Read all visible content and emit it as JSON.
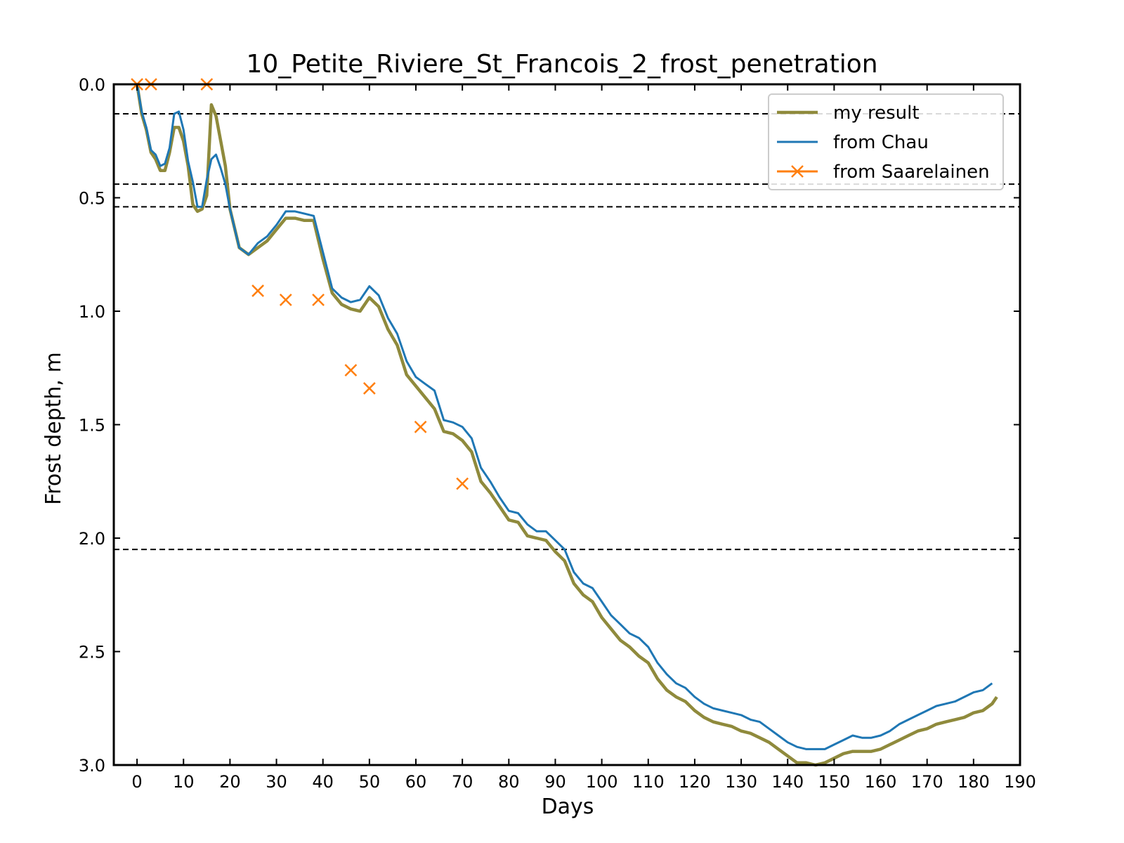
{
  "chart_data": {
    "type": "line",
    "title": "10_Petite_Riviere_St_Francois_2_frost_penetration",
    "xlabel": "Days",
    "ylabel": "Frost depth, m",
    "xlim": [
      -5,
      190
    ],
    "ylim": [
      0,
      3.0
    ],
    "y_inverted": true,
    "grid": false,
    "legend_position": "top-right",
    "x_ticks": [
      0,
      10,
      20,
      30,
      40,
      50,
      60,
      70,
      80,
      90,
      100,
      110,
      120,
      130,
      140,
      150,
      160,
      170,
      180,
      190
    ],
    "y_ticks": [
      0.0,
      0.5,
      1.0,
      1.5,
      2.0,
      2.5,
      3.0
    ],
    "y_tick_labels": [
      "0.0",
      "0.5",
      "1.0",
      "1.5",
      "2.0",
      "2.5",
      "3.0"
    ],
    "reference_lines": [
      0.13,
      0.44,
      0.54,
      2.05
    ],
    "series": [
      {
        "name": "my result",
        "color": "#8f8a3c",
        "style": "line",
        "x": [
          0,
          1,
          2,
          3,
          4,
          5,
          6,
          7,
          8,
          9,
          10,
          11,
          12,
          13,
          14,
          15,
          16,
          17,
          18,
          19,
          20,
          22,
          24,
          26,
          28,
          30,
          32,
          34,
          36,
          38,
          40,
          42,
          44,
          46,
          48,
          50,
          52,
          54,
          56,
          58,
          60,
          62,
          64,
          66,
          68,
          70,
          72,
          74,
          76,
          78,
          80,
          82,
          84,
          86,
          88,
          90,
          92,
          94,
          96,
          98,
          100,
          102,
          104,
          106,
          108,
          110,
          112,
          114,
          116,
          118,
          120,
          122,
          124,
          126,
          128,
          130,
          132,
          134,
          136,
          138,
          140,
          142,
          144,
          146,
          148,
          150,
          152,
          154,
          156,
          158,
          160,
          162,
          164,
          166,
          168,
          170,
          172,
          174,
          176,
          178,
          180,
          182,
          184,
          185
        ],
        "y": [
          0.0,
          0.13,
          0.2,
          0.3,
          0.33,
          0.38,
          0.38,
          0.3,
          0.19,
          0.19,
          0.25,
          0.36,
          0.53,
          0.56,
          0.55,
          0.49,
          0.09,
          0.14,
          0.25,
          0.36,
          0.55,
          0.72,
          0.75,
          0.72,
          0.69,
          0.64,
          0.59,
          0.59,
          0.6,
          0.6,
          0.77,
          0.92,
          0.97,
          0.99,
          1.0,
          0.94,
          0.98,
          1.08,
          1.15,
          1.28,
          1.33,
          1.38,
          1.43,
          1.53,
          1.54,
          1.57,
          1.62,
          1.75,
          1.8,
          1.86,
          1.92,
          1.93,
          1.99,
          2.0,
          2.01,
          2.06,
          2.1,
          2.2,
          2.25,
          2.28,
          2.35,
          2.4,
          2.45,
          2.48,
          2.52,
          2.55,
          2.62,
          2.67,
          2.7,
          2.72,
          2.76,
          2.79,
          2.81,
          2.82,
          2.83,
          2.85,
          2.86,
          2.88,
          2.9,
          2.93,
          2.96,
          2.99,
          2.99,
          3.0,
          2.99,
          2.97,
          2.95,
          2.94,
          2.94,
          2.94,
          2.93,
          2.91,
          2.89,
          2.87,
          2.85,
          2.84,
          2.82,
          2.81,
          2.8,
          2.79,
          2.77,
          2.76,
          2.73,
          2.7
        ]
      },
      {
        "name": "from Chau",
        "color": "#1f77b4",
        "style": "line",
        "x": [
          0,
          1,
          2,
          3,
          4,
          5,
          6,
          7,
          8,
          9,
          10,
          11,
          12,
          13,
          14,
          15,
          16,
          17,
          18,
          19,
          20,
          22,
          24,
          26,
          28,
          30,
          32,
          34,
          36,
          38,
          40,
          42,
          44,
          46,
          48,
          50,
          52,
          54,
          56,
          58,
          60,
          62,
          64,
          66,
          68,
          70,
          72,
          74,
          76,
          78,
          80,
          82,
          84,
          86,
          88,
          90,
          92,
          94,
          96,
          98,
          100,
          102,
          104,
          106,
          108,
          110,
          112,
          114,
          116,
          118,
          120,
          122,
          124,
          126,
          128,
          130,
          132,
          134,
          136,
          138,
          140,
          142,
          144,
          146,
          148,
          150,
          152,
          154,
          156,
          158,
          160,
          162,
          164,
          166,
          168,
          170,
          172,
          174,
          176,
          178,
          180,
          182,
          184
        ],
        "y": [
          0.0,
          0.12,
          0.19,
          0.29,
          0.31,
          0.36,
          0.35,
          0.28,
          0.13,
          0.12,
          0.2,
          0.34,
          0.43,
          0.54,
          0.54,
          0.42,
          0.33,
          0.31,
          0.37,
          0.44,
          0.55,
          0.72,
          0.75,
          0.7,
          0.67,
          0.62,
          0.56,
          0.56,
          0.57,
          0.58,
          0.74,
          0.9,
          0.94,
          0.96,
          0.95,
          0.89,
          0.93,
          1.03,
          1.1,
          1.22,
          1.29,
          1.32,
          1.35,
          1.48,
          1.49,
          1.51,
          1.56,
          1.69,
          1.75,
          1.82,
          1.88,
          1.89,
          1.94,
          1.97,
          1.97,
          2.01,
          2.05,
          2.15,
          2.2,
          2.22,
          2.28,
          2.34,
          2.38,
          2.42,
          2.44,
          2.48,
          2.55,
          2.6,
          2.64,
          2.66,
          2.7,
          2.73,
          2.75,
          2.76,
          2.77,
          2.78,
          2.8,
          2.81,
          2.84,
          2.87,
          2.9,
          2.92,
          2.93,
          2.93,
          2.93,
          2.91,
          2.89,
          2.87,
          2.88,
          2.88,
          2.87,
          2.85,
          2.82,
          2.8,
          2.78,
          2.76,
          2.74,
          2.73,
          2.72,
          2.7,
          2.68,
          2.67,
          2.64
        ]
      },
      {
        "name": "from Saarelainen",
        "color": "#ff7f0e",
        "style": "marker-x",
        "x": [
          0,
          3,
          15,
          26,
          32,
          39,
          46,
          50,
          61,
          70
        ],
        "y": [
          0.0,
          0.0,
          0.0,
          0.91,
          0.95,
          0.95,
          1.26,
          1.34,
          1.51,
          1.76
        ]
      }
    ]
  }
}
